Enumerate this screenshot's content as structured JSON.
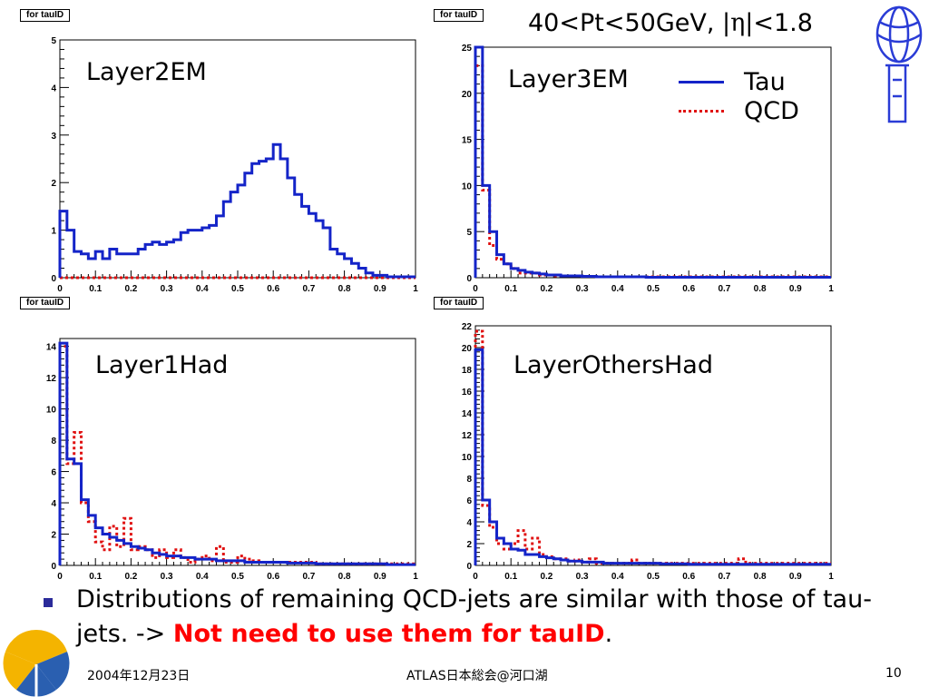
{
  "header": {
    "kinematics_pre": "40<Pt<50GeV, |",
    "eta_symbol": "η",
    "kinematics_post": "|<1.8"
  },
  "legend": {
    "tau_label": "Tau",
    "qcd_label": "QCD"
  },
  "colors": {
    "tau": "#1424c8",
    "qcd": "#e01010",
    "bullet": "#2b2b9a",
    "emphasis": "#ff0000"
  },
  "icons": {
    "top_right": "atlas-logo-icon",
    "bottom_left": "ginkgo-logo-icon"
  },
  "bullet": {
    "text": "Distributions of remaining QCD-jets are similar with those of tau-jets. -> ",
    "emphasis": "Not need to use them for tauID",
    "tail": "."
  },
  "footer": {
    "date": "2004年12月23日",
    "event": "ATLAS日本総会@河口湖",
    "page": "10"
  },
  "chart_data": [
    {
      "type": "histogram",
      "tag": "for tauID",
      "title": "Layer2EM",
      "xlim": [
        0,
        1
      ],
      "ylim": [
        0,
        5
      ],
      "xticks": [
        0,
        0.1,
        0.2,
        0.3,
        0.4,
        0.5,
        0.6,
        0.7,
        0.8,
        0.9,
        1
      ],
      "xtick_labels": [
        "0",
        "0.1",
        "0.2",
        "0.3",
        "0.4",
        "0.5",
        "0.6",
        "0.7",
        "0.8",
        "0.9",
        "1"
      ],
      "yticks": [
        0,
        1,
        2,
        3,
        4,
        5
      ],
      "ytick_labels": [
        "0",
        "1",
        "2",
        "3",
        "4",
        "5"
      ],
      "bin_width": 0.02,
      "series": [
        {
          "name": "Tau",
          "values": [
            1.4,
            1.0,
            0.55,
            0.5,
            0.4,
            0.55,
            0.4,
            0.6,
            0.5,
            0.5,
            0.5,
            0.6,
            0.7,
            0.75,
            0.7,
            0.75,
            0.8,
            0.95,
            1.0,
            1.0,
            1.05,
            1.1,
            1.3,
            1.6,
            1.8,
            1.95,
            2.2,
            2.4,
            2.45,
            2.5,
            2.8,
            2.5,
            2.1,
            1.75,
            1.5,
            1.35,
            1.2,
            1.05,
            0.6,
            0.5,
            0.4,
            0.3,
            0.2,
            0.1,
            0.05,
            0.05,
            0.02,
            0.02,
            0.02,
            0.02
          ]
        },
        {
          "name": "QCD",
          "values": [
            0,
            0,
            0,
            0,
            0,
            0,
            0,
            0,
            0,
            0,
            0,
            0,
            0,
            0,
            0,
            0,
            0,
            0,
            0,
            0,
            0,
            0,
            0,
            0,
            0,
            0,
            0,
            0,
            0,
            0,
            0,
            0,
            0,
            0,
            0,
            0,
            0,
            0,
            0,
            0,
            0,
            0,
            0,
            0,
            0,
            0,
            0,
            0,
            0,
            0
          ]
        }
      ]
    },
    {
      "type": "histogram",
      "tag": "for tauID",
      "title": "Layer3EM",
      "xlim": [
        0,
        1
      ],
      "ylim": [
        0,
        25
      ],
      "xticks": [
        0,
        0.1,
        0.2,
        0.3,
        0.4,
        0.5,
        0.6,
        0.7,
        0.8,
        0.9,
        1
      ],
      "xtick_labels": [
        "0",
        "0.1",
        "0.2",
        "0.3",
        "0.4",
        "0.5",
        "0.6",
        "0.7",
        "0.8",
        "0.9",
        "1"
      ],
      "yticks": [
        0,
        5,
        10,
        15,
        20,
        25
      ],
      "ytick_labels": [
        "0",
        "5",
        "10",
        "15",
        "20",
        "25"
      ],
      "bin_width": 0.02,
      "series": [
        {
          "name": "Tau",
          "values": [
            25,
            10,
            5,
            2.5,
            1.5,
            1.0,
            0.8,
            0.6,
            0.5,
            0.4,
            0.3,
            0.3,
            0.2,
            0.2,
            0.2,
            0.15,
            0.15,
            0.1,
            0.1,
            0.1,
            0.1,
            0.1,
            0.1,
            0.1,
            0.05,
            0.05,
            0.05,
            0.05,
            0.05,
            0.05,
            0.05,
            0.05,
            0.05,
            0.05,
            0.05,
            0.05,
            0.05,
            0.05,
            0.05,
            0.05,
            0.05,
            0.05,
            0.05,
            0.05,
            0.05,
            0.05,
            0.05,
            0.05,
            0.05,
            0.05
          ]
        },
        {
          "name": "QCD",
          "values": [
            23,
            9.5,
            3.5,
            2,
            1.5,
            1.0,
            0.5,
            0.5,
            0.5,
            0.3,
            0.3,
            0.2,
            0.2,
            0.2,
            0.2,
            0.15,
            0.15,
            0.1,
            0.1,
            0.1,
            0.1,
            0.1,
            0.1,
            0.1,
            0.1,
            0.1,
            0.1,
            0.1,
            0.1,
            0.1,
            0.1,
            0.1,
            0.1,
            0.1,
            0.1,
            0.1,
            0.1,
            0.1,
            0.1,
            0.1,
            0.1,
            0.1,
            0.1,
            0.1,
            0.1,
            0.1,
            0.1,
            0.1,
            0.1,
            0.1
          ]
        }
      ]
    },
    {
      "type": "histogram",
      "tag": "for tauID",
      "title": "Layer1Had",
      "xlim": [
        0,
        1
      ],
      "ylim": [
        0,
        14.5
      ],
      "xticks": [
        0,
        0.1,
        0.2,
        0.3,
        0.4,
        0.5,
        0.6,
        0.7,
        0.8,
        0.9,
        1
      ],
      "xtick_labels": [
        "0",
        "0.1",
        "0.2",
        "0.3",
        "0.4",
        "0.5",
        "0.6",
        "0.7",
        "0.8",
        "0.9",
        "1"
      ],
      "yticks": [
        0,
        2,
        4,
        6,
        8,
        10,
        12,
        14
      ],
      "ytick_labels": [
        "0",
        "2",
        "4",
        "6",
        "8",
        "10",
        "12",
        "14"
      ],
      "bin_width": 0.02,
      "series": [
        {
          "name": "Tau",
          "values": [
            14.2,
            6.8,
            6.5,
            4.2,
            3.2,
            2.4,
            2.0,
            1.8,
            1.6,
            1.4,
            1.2,
            1.1,
            1.0,
            0.8,
            0.7,
            0.6,
            0.6,
            0.5,
            0.5,
            0.4,
            0.4,
            0.4,
            0.3,
            0.3,
            0.3,
            0.3,
            0.2,
            0.2,
            0.2,
            0.2,
            0.2,
            0.2,
            0.15,
            0.15,
            0.15,
            0.15,
            0.1,
            0.1,
            0.1,
            0.1,
            0.1,
            0.1,
            0.1,
            0.1,
            0.1,
            0.1,
            0.05,
            0.05,
            0.05,
            0.05
          ]
        },
        {
          "name": "QCD",
          "values": [
            14.0,
            6.5,
            8.5,
            4.0,
            2.8,
            1.5,
            1.0,
            2.5,
            1.2,
            3.0,
            1.0,
            1.2,
            1.0,
            0.5,
            1.0,
            0.5,
            1.0,
            0.5,
            0.2,
            0.4,
            0.6,
            0.3,
            1.2,
            0.2,
            0.2,
            0.6,
            0.4,
            0.3,
            0.2,
            0.2,
            0.2,
            0.2,
            0.2,
            0.2,
            0.2,
            0.2,
            0.1,
            0.1,
            0.1,
            0.1,
            0.1,
            0.1,
            0.1,
            0.1,
            0.1,
            0.1,
            0.1,
            0.1,
            0.1,
            0.1
          ]
        }
      ]
    },
    {
      "type": "histogram",
      "tag": "for tauID",
      "title": "LayerOthersHad",
      "xlim": [
        0,
        1
      ],
      "ylim": [
        0,
        22
      ],
      "xticks": [
        0,
        0.1,
        0.2,
        0.3,
        0.4,
        0.5,
        0.6,
        0.7,
        0.8,
        0.9,
        1
      ],
      "xtick_labels": [
        "0",
        "0.1",
        "0.2",
        "0.3",
        "0.4",
        "0.5",
        "0.6",
        "0.7",
        "0.8",
        "0.9",
        "1"
      ],
      "yticks": [
        0,
        2,
        4,
        6,
        8,
        10,
        12,
        14,
        16,
        18,
        20,
        22
      ],
      "ytick_labels": [
        "0",
        "2",
        "4",
        "6",
        "8",
        "10",
        "12",
        "14",
        "16",
        "18",
        "20",
        "22"
      ],
      "bin_width": 0.02,
      "series": [
        {
          "name": "Tau",
          "values": [
            19.8,
            6.0,
            4.0,
            2.5,
            2.0,
            1.5,
            1.4,
            1.0,
            1.0,
            0.8,
            0.7,
            0.6,
            0.5,
            0.4,
            0.4,
            0.3,
            0.3,
            0.3,
            0.2,
            0.2,
            0.2,
            0.2,
            0.2,
            0.2,
            0.2,
            0.2,
            0.15,
            0.15,
            0.15,
            0.15,
            0.1,
            0.1,
            0.1,
            0.1,
            0.1,
            0.1,
            0.1,
            0.1,
            0.1,
            0.1,
            0.1,
            0.1,
            0.1,
            0.1,
            0.1,
            0.1,
            0.1,
            0.1,
            0.1,
            0.1
          ]
        },
        {
          "name": "QCD",
          "values": [
            21.5,
            5.5,
            3.5,
            2.0,
            1.5,
            2.0,
            3.2,
            1.5,
            2.5,
            1.0,
            0.8,
            0.6,
            0.6,
            0.4,
            0.5,
            0.3,
            0.6,
            0.2,
            0.2,
            0.2,
            0.2,
            0.2,
            0.5,
            0.2,
            0.2,
            0.2,
            0.2,
            0.2,
            0.2,
            0.2,
            0.2,
            0.2,
            0.2,
            0.2,
            0.2,
            0.2,
            0.2,
            0.6,
            0.2,
            0.2,
            0.2,
            0.2,
            0.2,
            0.2,
            0.2,
            0.2,
            0.2,
            0.2,
            0.2,
            0.2
          ]
        }
      ]
    }
  ]
}
